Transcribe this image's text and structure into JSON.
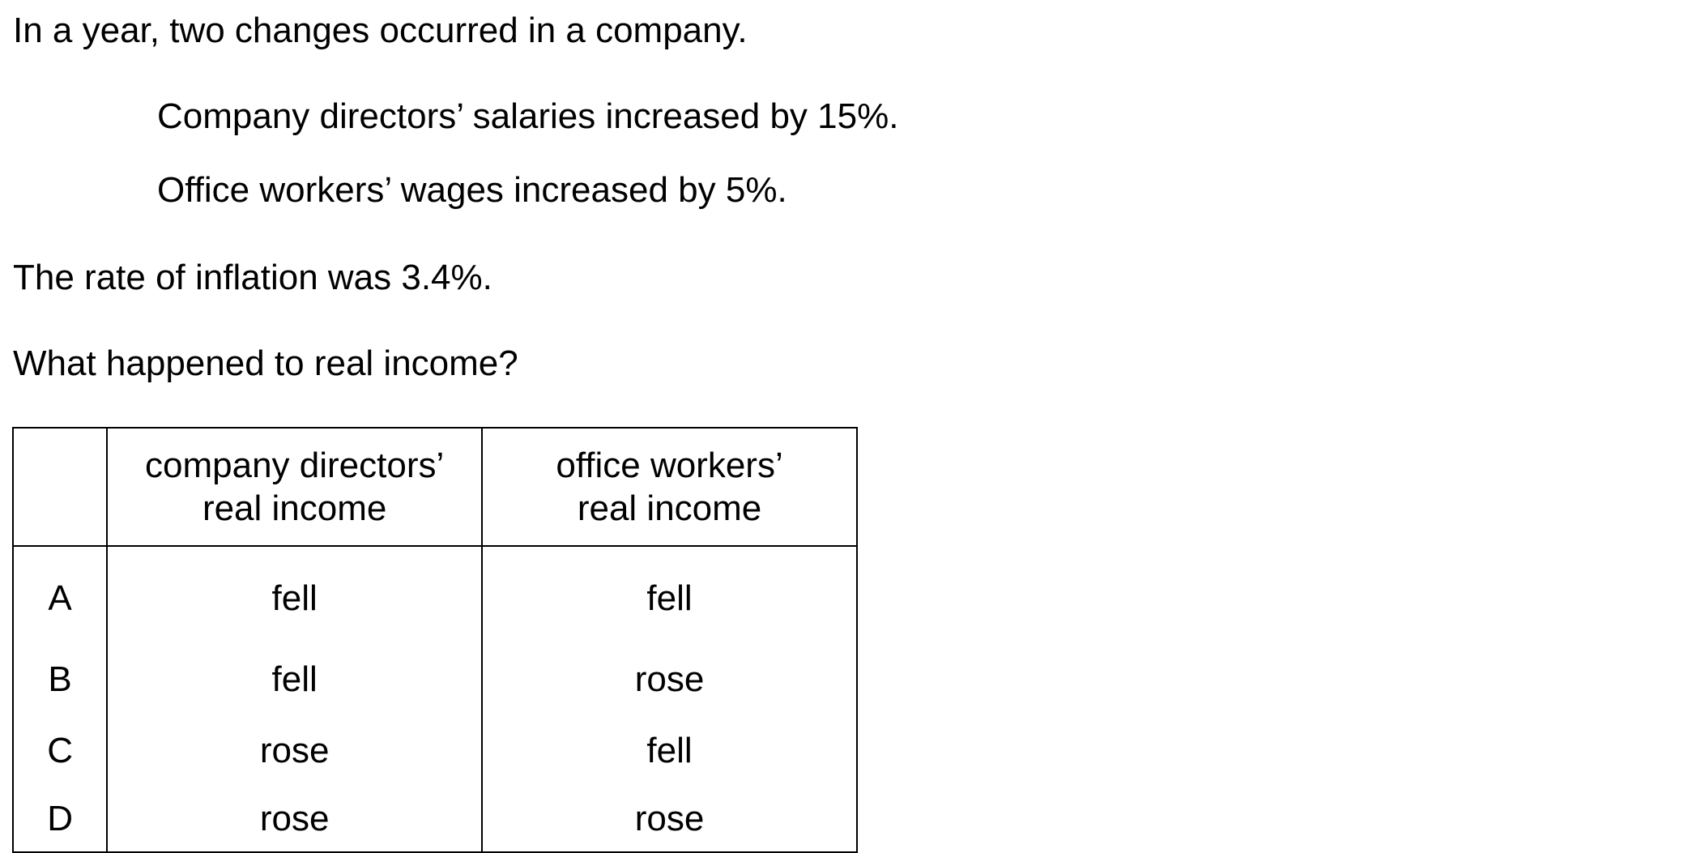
{
  "question": {
    "intro": "In a year, two changes occurred in a company.",
    "changes": [
      "Company directors’ salaries increased by 15%.",
      "Office workers’ wages increased by 5%."
    ],
    "inflation": "The rate of inflation was 3.4%.",
    "prompt": "What happened to real income?"
  },
  "table": {
    "headers": {
      "directors_line1": "company directors’",
      "directors_line2": "real income",
      "workers_line1": "office workers’",
      "workers_line2": "real income"
    },
    "rows": [
      {
        "option": "A",
        "directors": "fell",
        "workers": "fell"
      },
      {
        "option": "B",
        "directors": "fell",
        "workers": "rose"
      },
      {
        "option": "C",
        "directors": "rose",
        "workers": "fell"
      },
      {
        "option": "D",
        "directors": "rose",
        "workers": "rose"
      }
    ]
  }
}
